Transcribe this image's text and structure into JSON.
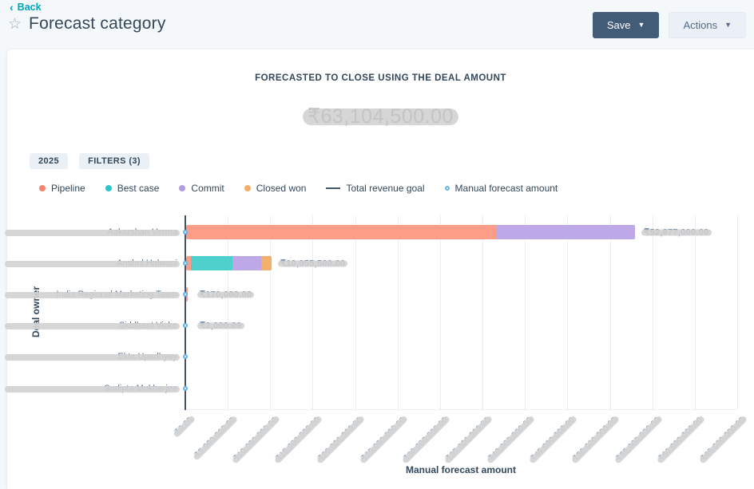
{
  "page": {
    "back_label": "Back",
    "title": "Forecast category"
  },
  "toolbar": {
    "save_label": "Save",
    "actions_label": "Actions"
  },
  "summary": {
    "heading": "FORECASTED TO CLOSE USING THE DEAL AMOUNT",
    "total": "₹63,104,500.00",
    "total_redacted": true
  },
  "chips": [
    {
      "label": "2025"
    },
    {
      "label": "FILTERS (3)"
    }
  ],
  "legend": [
    {
      "label": "Pipeline",
      "marker": "dot",
      "color": "#f5846e"
    },
    {
      "label": "Best case",
      "marker": "dot",
      "color": "#2cc3ca"
    },
    {
      "label": "Commit",
      "marker": "dot",
      "color": "#b49be0"
    },
    {
      "label": "Closed won",
      "marker": "dot",
      "color": "#f0af69"
    },
    {
      "label": "Total revenue goal",
      "marker": "line",
      "color": "#44546d"
    },
    {
      "label": "Manual forecast amount",
      "marker": "ring",
      "color": "#64b5ec"
    }
  ],
  "chart_data": {
    "type": "bar",
    "orientation": "horizontal",
    "xlabel": "Manual forecast amount",
    "ylabel": "Deal owner",
    "xlim": [
      0,
      65000000
    ],
    "grid": true,
    "categories": [
      "Aakarshan Verma",
      "Anshul Halwani",
      "India Regional Marketing Team",
      "Siddhant Vicke",
      "Ekta Upadhyay",
      "Sudipta Mukherjee"
    ],
    "categories_redacted": true,
    "series": [
      {
        "name": "Pipeline",
        "color": "#fc9e87",
        "values": [
          36477000,
          550000,
          170000,
          2000,
          0,
          0
        ]
      },
      {
        "name": "Best case",
        "color": "#4ed0cd",
        "values": [
          0,
          4950000,
          0,
          0,
          0,
          0
        ]
      },
      {
        "name": "Commit",
        "color": "#bda9e8",
        "values": [
          16400000,
          3300000,
          0,
          0,
          0,
          0
        ]
      },
      {
        "name": "Closed won",
        "color": "#f2b06c",
        "values": [
          0,
          1255500,
          0,
          0,
          0,
          0
        ]
      }
    ],
    "bar_totals": [
      52877000,
      10055500,
      170000,
      2000,
      0,
      0
    ],
    "bar_labels": [
      "₹52,877,000.00",
      "₹10,055,500.00",
      "₹170,000.00",
      "₹2,000.00",
      "",
      ""
    ],
    "bar_labels_redacted": true,
    "total_revenue_goal": 0,
    "manual_forecast_amounts": [
      0,
      0,
      0,
      0,
      0,
      0
    ],
    "x_ticks": [
      "₹0.00",
      "₹5,000,000.00",
      "₹10,000,000.00",
      "₹15,000,000.00",
      "₹20,000,000.00",
      "₹25,000,000.00",
      "₹30,000,000.00",
      "₹35,000,000.00",
      "₹40,000,000.00",
      "₹45,000,000.00",
      "₹50,000,000.00",
      "₹55,000,000.00",
      "₹60,000,000.00",
      "₹65,000,000.00"
    ],
    "x_ticks_redacted": true,
    "legend_position": "top"
  }
}
